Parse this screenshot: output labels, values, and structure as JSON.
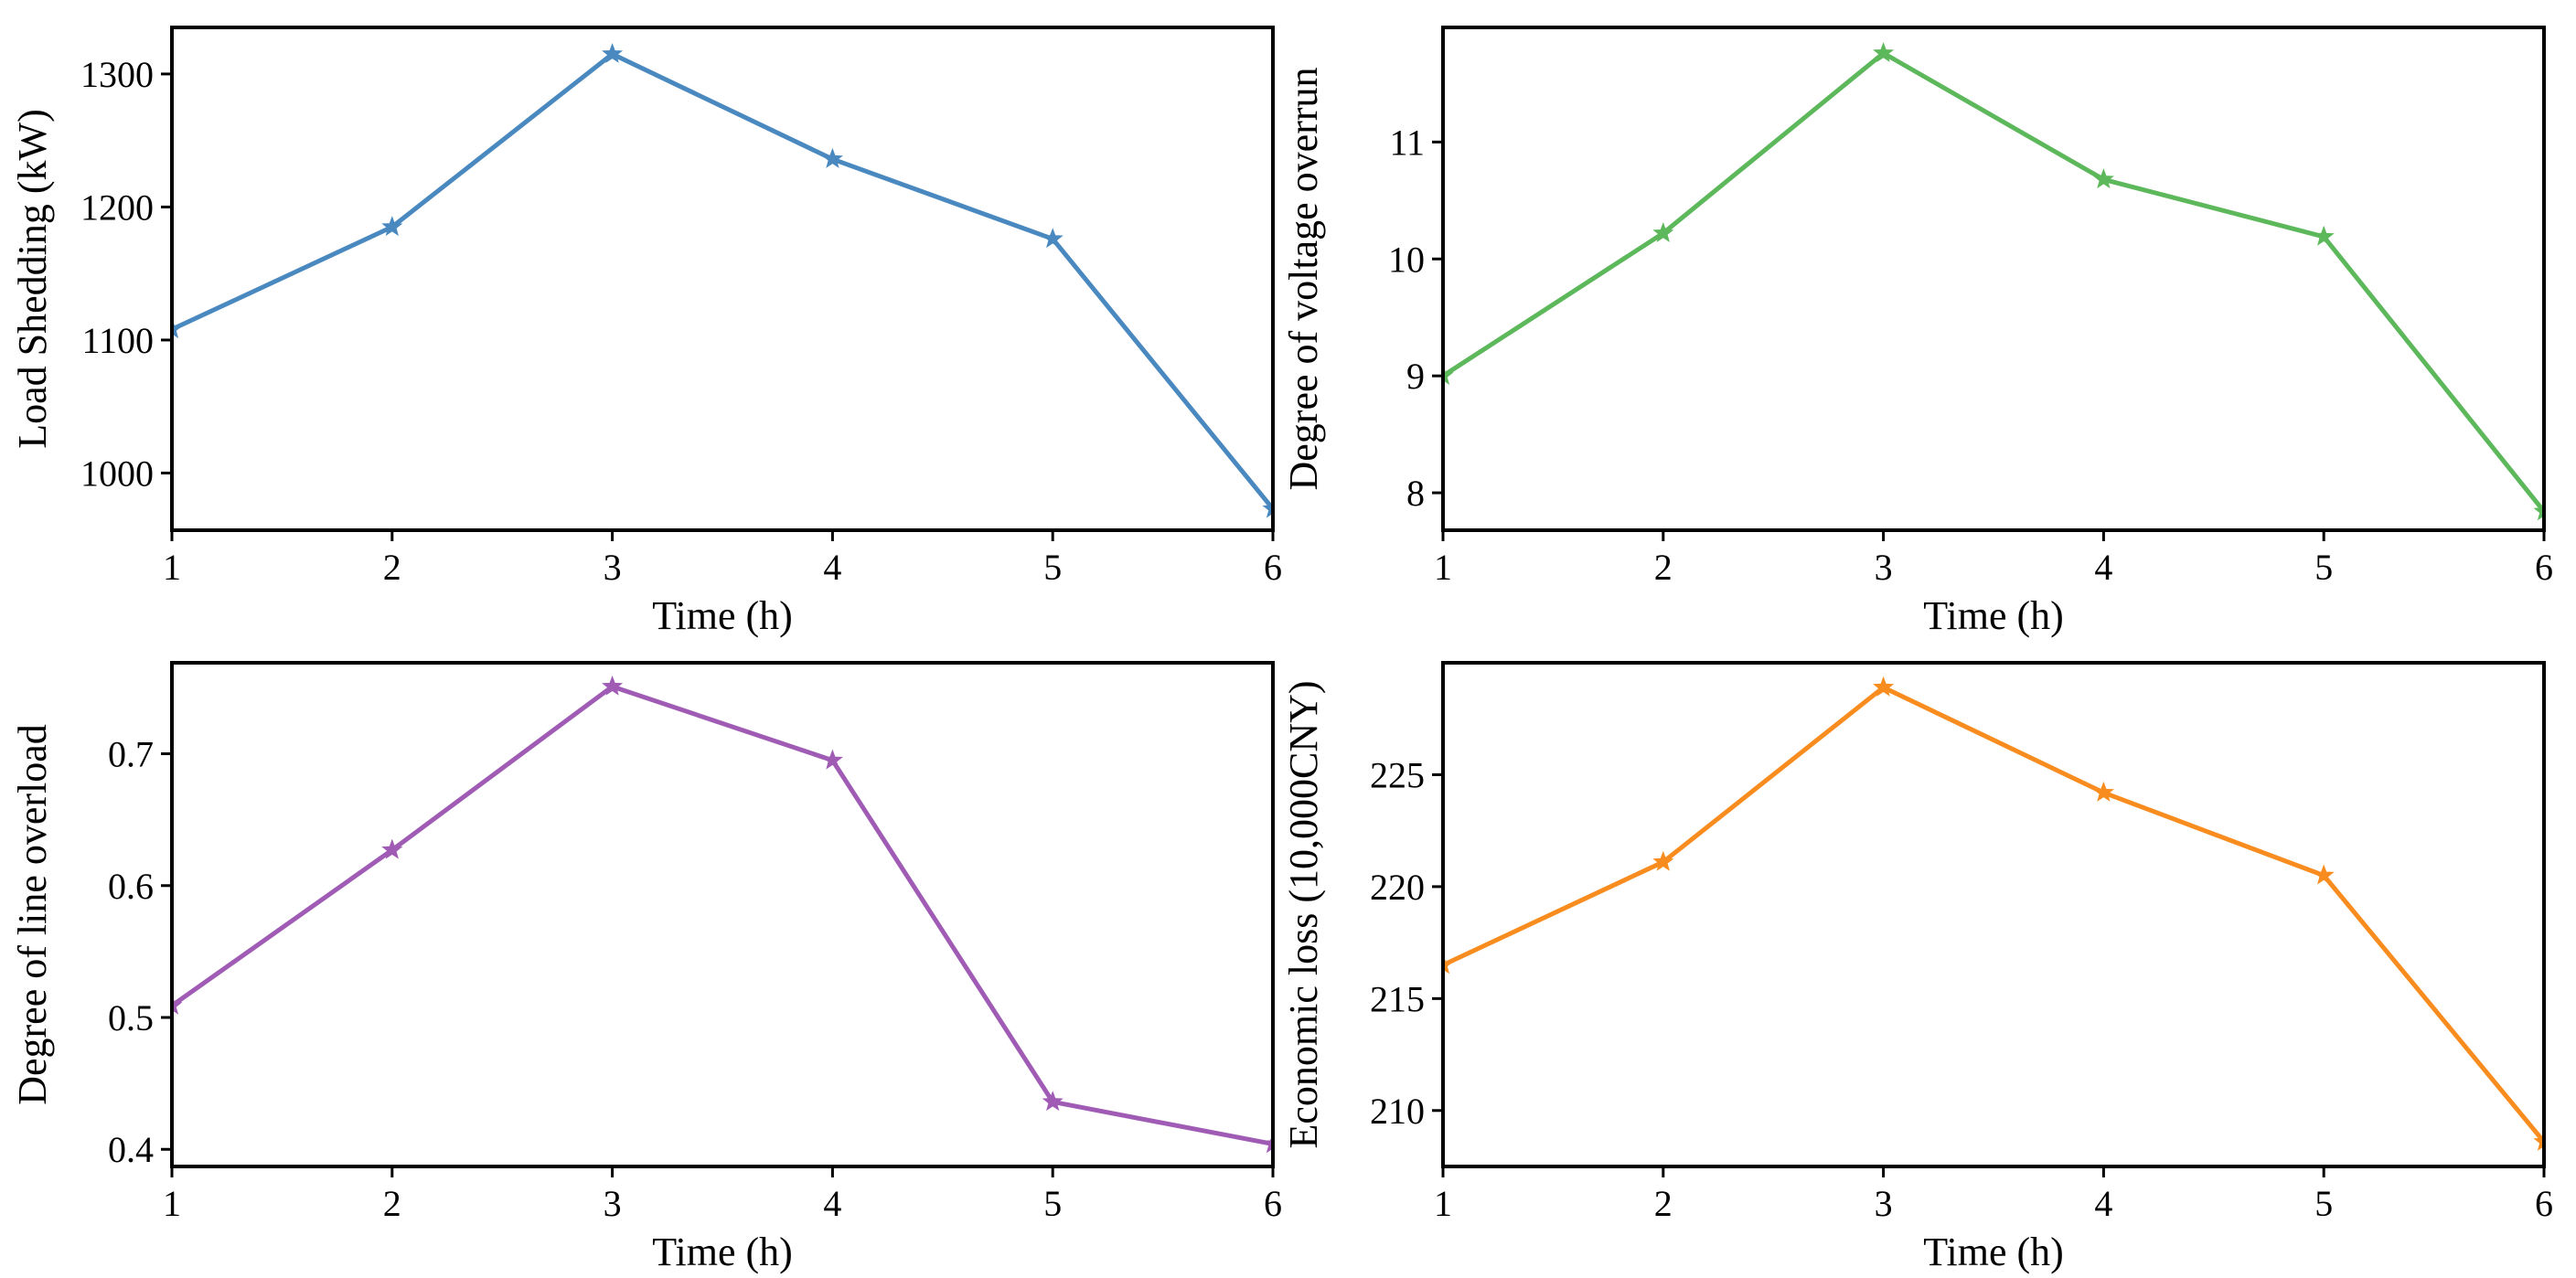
{
  "chart_data": [
    {
      "type": "line",
      "xlabel": "Time (h)",
      "ylabel": "Load Shedding (kW)",
      "x": [
        1,
        2,
        3,
        4,
        5,
        6
      ],
      "series": [
        {
          "name": "Load Shedding",
          "values": [
            1108,
            1185,
            1315,
            1236,
            1176,
            973
          ],
          "color": "#4A89C0"
        }
      ],
      "xlim": [
        1,
        6
      ],
      "ylim": [
        957,
        1335
      ],
      "xticks": [
        1,
        2,
        3,
        4,
        5,
        6
      ],
      "yticks": [
        1000,
        1100,
        1200,
        1300
      ],
      "marker": "star",
      "grid": false
    },
    {
      "type": "line",
      "xlabel": "Time (h)",
      "ylabel": "Degree of voltage overrun",
      "x": [
        1,
        2,
        3,
        4,
        5,
        6
      ],
      "series": [
        {
          "name": "Degree of voltage overrun",
          "values": [
            9.0,
            10.22,
            11.76,
            10.68,
            10.19,
            7.84
          ],
          "color": "#5DB85B"
        }
      ],
      "xlim": [
        1,
        6
      ],
      "ylim": [
        7.68,
        11.98
      ],
      "xticks": [
        1,
        2,
        3,
        4,
        5,
        6
      ],
      "yticks": [
        8,
        9,
        10,
        11
      ],
      "marker": "star",
      "grid": false
    },
    {
      "type": "line",
      "xlabel": "Time (h)",
      "ylabel": "Degree of line overload",
      "x": [
        1,
        2,
        3,
        4,
        5,
        6
      ],
      "series": [
        {
          "name": "Degree of line overload",
          "values": [
            0.509,
            0.627,
            0.751,
            0.695,
            0.436,
            0.404
          ],
          "color": "#A05CB5"
        }
      ],
      "xlim": [
        1,
        6
      ],
      "ylim": [
        0.387,
        0.769
      ],
      "xticks": [
        1,
        2,
        3,
        4,
        5,
        6
      ],
      "yticks": [
        0.4,
        0.5,
        0.6,
        0.7
      ],
      "marker": "star",
      "grid": false
    },
    {
      "type": "line",
      "xlabel": "Time (h)",
      "ylabel": "Economic loss (10,000CNY)",
      "x": [
        1,
        2,
        3,
        4,
        5,
        6
      ],
      "series": [
        {
          "name": "Economic loss",
          "values": [
            216.5,
            221.1,
            228.9,
            224.2,
            220.5,
            208.6
          ],
          "color": "#F98C1F"
        }
      ],
      "xlim": [
        1,
        6
      ],
      "ylim": [
        207.5,
        230.0
      ],
      "xticks": [
        1,
        2,
        3,
        4,
        5,
        6
      ],
      "yticks": [
        210,
        215,
        220,
        225
      ],
      "marker": "star",
      "grid": false
    }
  ]
}
